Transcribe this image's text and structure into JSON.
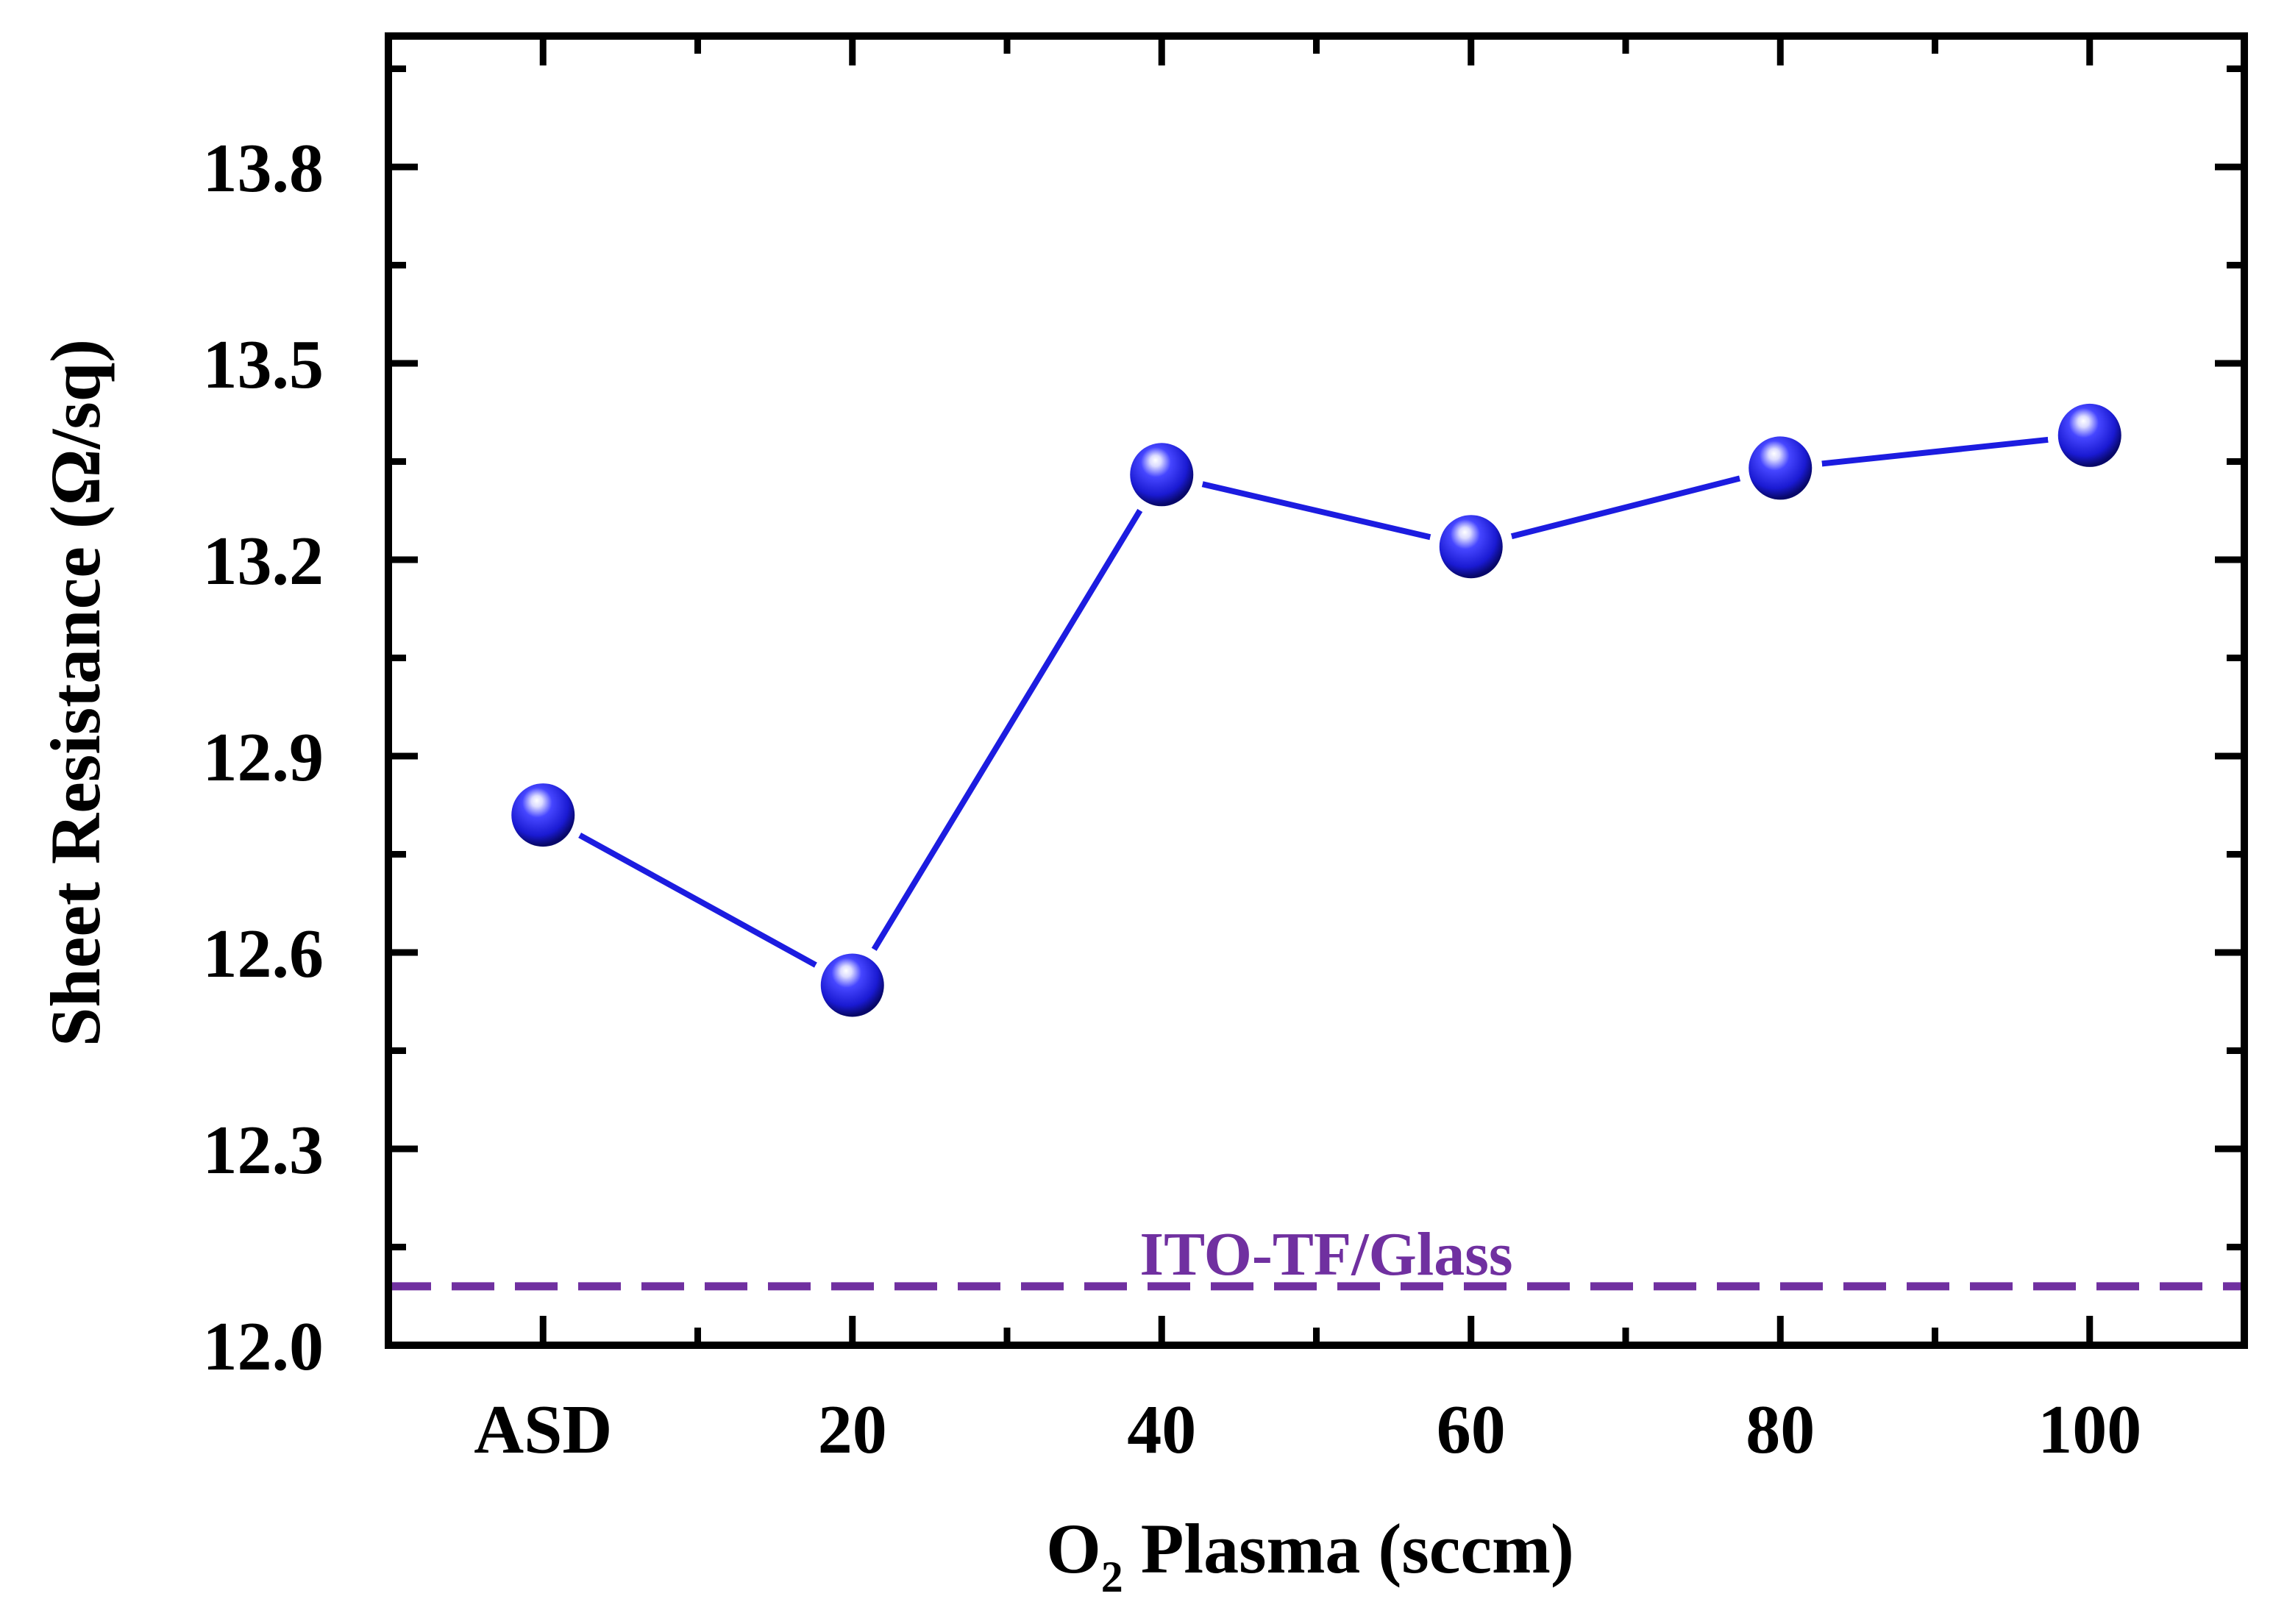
{
  "chart_data": {
    "type": "line",
    "categories": [
      "ASD",
      "20",
      "40",
      "60",
      "80",
      "100"
    ],
    "series": [
      {
        "values": [
          12.81,
          12.55,
          13.33,
          13.22,
          13.34,
          13.39
        ],
        "color": "#1c1ce0"
      }
    ],
    "xlabel": {
      "prefix": "O",
      "subscript": "2",
      "suffix": " Plasma (sccm)"
    },
    "ylabel": "Sheet Resistance (Ω/sq)",
    "ylim": [
      12.0,
      14.0
    ],
    "yticks": [
      "12.0",
      "12.3",
      "12.6",
      "12.9",
      "13.2",
      "13.5",
      "13.8"
    ],
    "reference_line": {
      "label": "ITO-TF/Glass",
      "value": 12.09,
      "color": "#7030a0",
      "style": "dashed"
    },
    "grid": false,
    "legend": "none"
  }
}
